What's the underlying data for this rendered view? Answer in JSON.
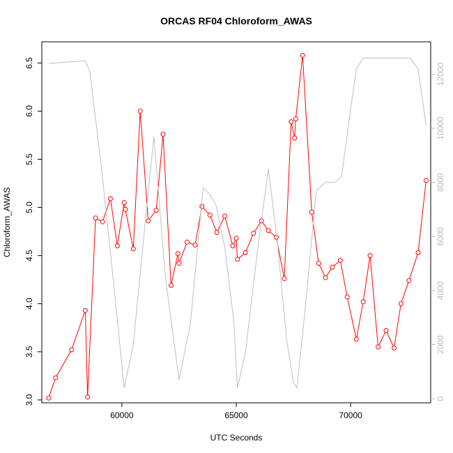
{
  "chart_data": {
    "type": "line",
    "title": "ORCAS RF04 Chloroform_AWAS",
    "xlabel": "UTC Seconds",
    "ylabel": "Chloroform_AWAS",
    "xlim": [
      56500,
      73500
    ],
    "ylim": [
      2.97,
      6.72
    ],
    "y2lim": [
      -150,
      13200
    ],
    "x_ticks": [
      60000,
      65000,
      70000
    ],
    "y_ticks": [
      3.0,
      3.5,
      4.0,
      4.5,
      5.0,
      5.5,
      6.0,
      6.5
    ],
    "y_tick_labels": [
      "3.0",
      "3.5",
      "4.0",
      "4.5",
      "5.0",
      "5.5",
      "6.0",
      "6.5"
    ],
    "y2_ticks": [
      0,
      2000,
      4000,
      6000,
      8000,
      10000,
      12000
    ],
    "grid": false,
    "series": [
      {
        "axis": "left",
        "color": "#ff0000",
        "marker": "open-circle",
        "x": [
          56800,
          57100,
          57800,
          58400,
          58500,
          58850,
          59150,
          59500,
          59800,
          60100,
          60150,
          60500,
          60800,
          61150,
          61500,
          61800,
          62150,
          62450,
          62500,
          62850,
          63200,
          63500,
          63850,
          64150,
          64500,
          64850,
          65000,
          65050,
          65400,
          65750,
          66100,
          66400,
          66750,
          67100,
          67400,
          67550,
          67600,
          67900,
          68300,
          68600,
          68900,
          69200,
          69550,
          69850,
          70250,
          70550,
          70850,
          71200,
          71550,
          71900,
          72200,
          72550,
          72950,
          73300
        ],
        "y": [
          3.02,
          3.23,
          3.52,
          3.93,
          3.03,
          4.89,
          4.85,
          5.09,
          4.6,
          5.05,
          4.98,
          4.57,
          6.0,
          4.86,
          4.97,
          5.76,
          4.19,
          4.52,
          4.42,
          4.64,
          4.61,
          5.01,
          4.92,
          4.74,
          4.91,
          4.6,
          4.68,
          4.46,
          4.53,
          4.73,
          4.86,
          4.76,
          4.69,
          4.26,
          5.89,
          5.72,
          5.92,
          6.58,
          4.95,
          4.42,
          4.27,
          4.38,
          4.45,
          4.07,
          3.63,
          4.02,
          4.5,
          3.55,
          3.72,
          3.54,
          4.0,
          4.24,
          4.53,
          5.28
        ]
      },
      {
        "axis": "right",
        "color": "#bebebe",
        "marker": "none",
        "x": [
          56800,
          58400,
          58600,
          59100,
          59600,
          60100,
          60500,
          60900,
          61400,
          61900,
          62500,
          63000,
          63550,
          63800,
          64100,
          64500,
          64900,
          65050,
          65400,
          65900,
          66400,
          66800,
          67200,
          67500,
          67650,
          68000,
          68500,
          68900,
          69300,
          69600,
          70000,
          70250,
          70550,
          71000,
          71500,
          72000,
          72600,
          72950,
          73300
        ],
        "y": [
          12400,
          12500,
          12100,
          8600,
          4600,
          400,
          2000,
          5500,
          9700,
          4500,
          700,
          2800,
          7800,
          7600,
          7200,
          5600,
          2800,
          400,
          1700,
          5300,
          8500,
          5800,
          2200,
          600,
          400,
          3200,
          7700,
          8000,
          8000,
          8200,
          10700,
          12200,
          12600,
          12600,
          12600,
          12600,
          12600,
          12200,
          10100
        ]
      }
    ]
  }
}
